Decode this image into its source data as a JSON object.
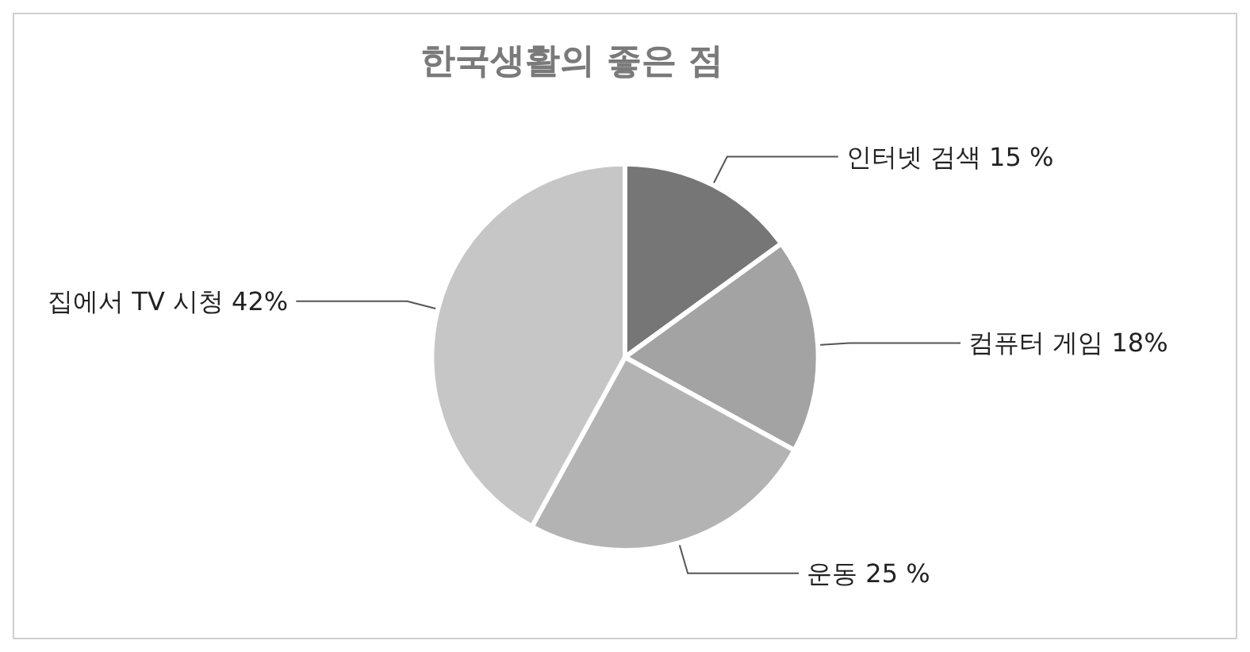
{
  "chart_data": {
    "type": "pie",
    "title": "한국생활의 좋은 점",
    "categories": [
      "인터넷 검색",
      "컴퓨터 게임",
      "운동",
      "집에서 TV 시청"
    ],
    "values": [
      15,
      18,
      25,
      42
    ],
    "value_labels": [
      "15 %",
      "18%",
      "25 %",
      "42%"
    ],
    "colors": [
      "#767676",
      "#a3a3a3",
      "#b3b3b3",
      "#c6c6c6"
    ],
    "legend": false
  }
}
